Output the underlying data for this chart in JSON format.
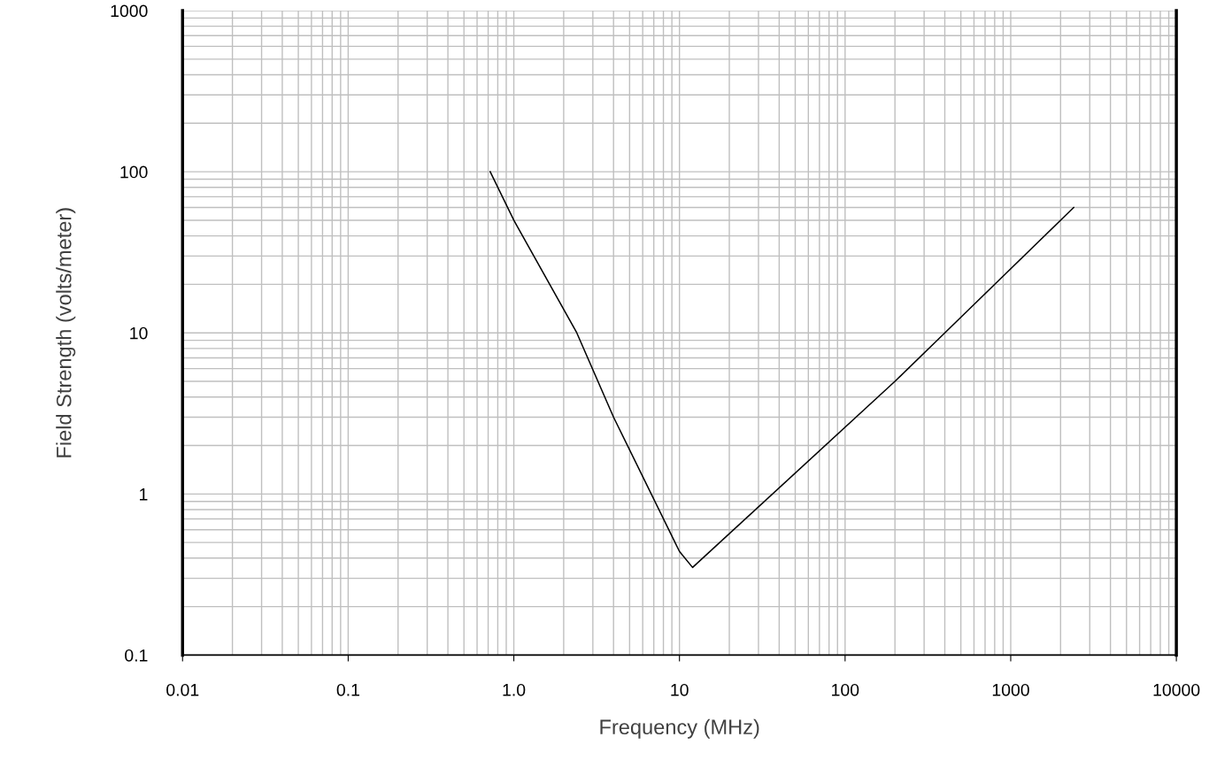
{
  "chart_data": {
    "type": "line",
    "xlabel": "Frequency (MHz)",
    "ylabel": "Field Strength (volts/meter)",
    "log": "xy",
    "grid": true,
    "marker": "none",
    "line_style": "solid",
    "x": [
      0.72,
      1.0,
      2.4,
      4,
      10,
      12,
      200,
      400,
      2400
    ],
    "series": [
      {
        "color": "#000000",
        "values": [
          100,
          50,
          10,
          3,
          0.44,
          0.35,
          5,
          10,
          60
        ]
      }
    ],
    "xlim": [
      0.01,
      10000
    ],
    "ylim": [
      0.1,
      1000
    ],
    "xticks": [
      0.01,
      0.1,
      {
        "value": 1,
        "label": "1.0"
      },
      10,
      100,
      1000,
      10000
    ],
    "yticks": [
      0.1,
      1,
      10,
      100,
      1000
    ]
  }
}
